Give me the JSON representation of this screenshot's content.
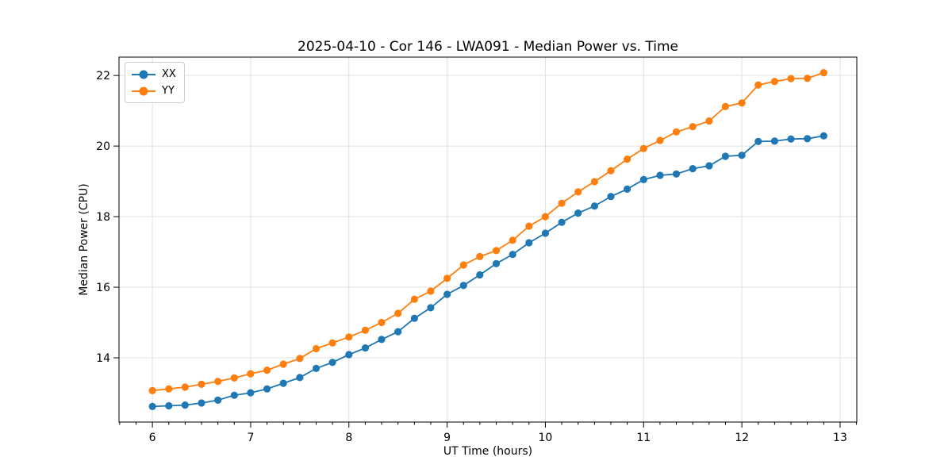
{
  "figure": {
    "background": "#ffffff",
    "spine_color": "#000000",
    "grid_color": "#e0e0e0"
  },
  "legend": {
    "position": "upper left",
    "entries": [
      {
        "label": "XX",
        "color": "#1f77b4"
      },
      {
        "label": "YY",
        "color": "#ff7f0e"
      }
    ]
  },
  "chart_data": {
    "type": "line",
    "title": "2025-04-10 - Cor 146 - LWA091 - Median Power vs. Time",
    "xlabel": "UT Time (hours)",
    "ylabel": "Median Power (CPU)",
    "grid": true,
    "legend_position": "upper left",
    "marker": "circle",
    "xlim": [
      5.66,
      13.17
    ],
    "ylim": [
      12.18,
      22.52
    ],
    "xticks": [
      6,
      7,
      8,
      9,
      10,
      11,
      12,
      13
    ],
    "yticks": [
      14,
      16,
      18,
      20,
      22
    ],
    "minor_xtick_step_hours": 0.1667,
    "x": [
      6.0,
      6.167,
      6.333,
      6.5,
      6.667,
      6.833,
      7.0,
      7.167,
      7.333,
      7.5,
      7.667,
      7.833,
      8.0,
      8.167,
      8.333,
      8.5,
      8.667,
      8.833,
      9.0,
      9.167,
      9.333,
      9.5,
      9.667,
      9.833,
      10.0,
      10.167,
      10.333,
      10.5,
      10.667,
      10.833,
      11.0,
      11.167,
      11.333,
      11.5,
      11.667,
      11.833,
      12.0,
      12.167,
      12.333,
      12.5,
      12.667,
      12.833
    ],
    "series": [
      {
        "name": "XX",
        "color": "#1f77b4",
        "values": [
          12.62,
          12.64,
          12.66,
          12.72,
          12.8,
          12.94,
          13.01,
          13.12,
          13.28,
          13.44,
          13.7,
          13.87,
          14.09,
          14.28,
          14.52,
          14.74,
          15.12,
          15.42,
          15.8,
          16.05,
          16.35,
          16.67,
          16.93,
          17.26,
          17.53,
          17.84,
          18.1,
          18.3,
          18.57,
          18.78,
          19.05,
          19.17,
          19.21,
          19.36,
          19.44,
          19.71,
          19.74,
          20.13,
          20.14,
          20.2,
          20.21,
          20.29
        ]
      },
      {
        "name": "YY",
        "color": "#ff7f0e",
        "values": [
          13.07,
          13.12,
          13.17,
          13.25,
          13.33,
          13.43,
          13.55,
          13.65,
          13.82,
          13.98,
          14.26,
          14.42,
          14.59,
          14.78,
          15.0,
          15.26,
          15.66,
          15.89,
          16.25,
          16.63,
          16.87,
          17.04,
          17.33,
          17.73,
          18.0,
          18.38,
          18.7,
          18.99,
          19.3,
          19.63,
          19.93,
          20.16,
          20.4,
          20.55,
          20.71,
          21.12,
          21.22,
          21.73,
          21.83,
          21.91,
          21.92,
          22.08
        ]
      }
    ]
  }
}
